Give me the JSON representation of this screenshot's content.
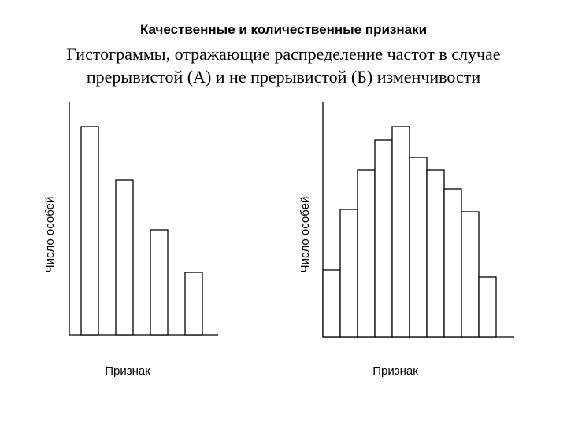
{
  "header": {
    "title": "Качественные и количественные признаки"
  },
  "subtitle": "Гистограммы, отражающие распределение частот в случае прерывистой (А) и не прерывистой (Б) изменчивости",
  "chart_data": [
    {
      "type": "bar",
      "title": "",
      "xlabel": "Признак",
      "ylabel": "Число особей",
      "values": [
        265,
        197,
        134,
        80
      ],
      "gap_bars": true,
      "ylim": [
        0,
        290
      ],
      "grid": false
    },
    {
      "type": "bar",
      "title": "",
      "xlabel": "Признак",
      "ylabel": "Число особей",
      "values": [
        85,
        162,
        212,
        250,
        267,
        228,
        212,
        188,
        159,
        76
      ],
      "gap_bars": false,
      "ylim": [
        0,
        290
      ],
      "grid": false
    }
  ]
}
